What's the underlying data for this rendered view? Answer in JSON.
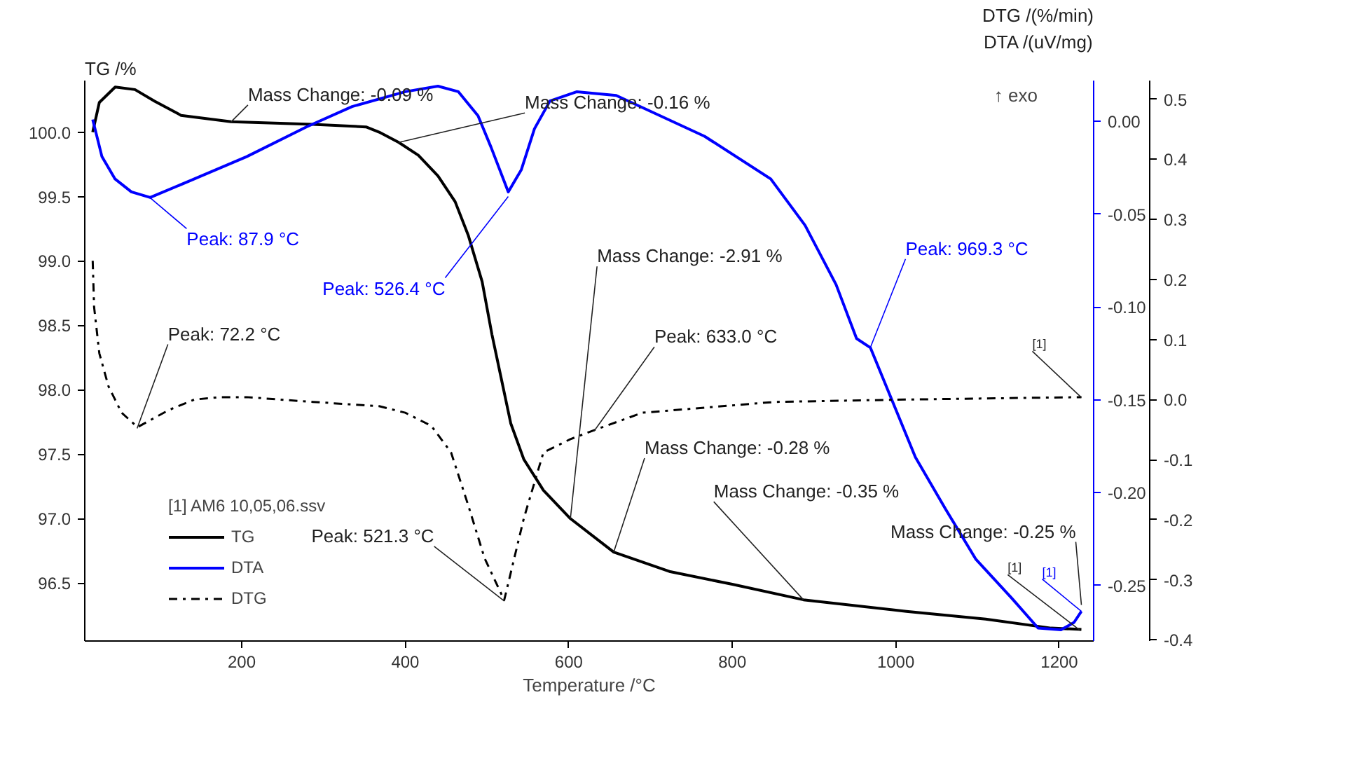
{
  "chart_data": {
    "type": "line",
    "xlabel": "Temperature /°C",
    "ylabel": "TG /%",
    "y2label": "DTA /(uV/mg)",
    "y3label": "DTG /(%/min)",
    "legend_title": "[1] AM6 10,05,06.ssv",
    "legend": "bottom left",
    "grid": false,
    "xlim": [
      8,
      1242
    ],
    "xticks": [
      200,
      400,
      600,
      800,
      1000,
      1200
    ],
    "ylim": [
      96.05,
      100.4
    ],
    "yticks": [
      {
        "value": 96.5,
        "label": "96.5"
      },
      {
        "value": 97,
        "label": "97.0"
      },
      {
        "value": 97.5,
        "label": "97.5"
      },
      {
        "value": 98,
        "label": "98.0"
      },
      {
        "value": 98.5,
        "label": "98.5"
      },
      {
        "value": 99,
        "label": "99.0"
      },
      {
        "value": 99.5,
        "label": "99.5"
      },
      {
        "value": 100,
        "label": "100.0"
      }
    ],
    "y2lim": [
      -0.28,
      0.022
    ],
    "y2ticks": [
      {
        "value": -0.25,
        "label": "-0.25"
      },
      {
        "value": -0.2,
        "label": "-0.20"
      },
      {
        "value": -0.15,
        "label": "-0.15"
      },
      {
        "value": -0.1,
        "label": "-0.10"
      },
      {
        "value": -0.05,
        "label": "-0.05"
      },
      {
        "value": 0,
        "label": "0.00"
      }
    ],
    "y3lim": [
      -0.402,
      0.531
    ],
    "y3ticks": [
      -0.4,
      -0.3,
      -0.2,
      -0.1,
      {
        "value": 0,
        "label": "0.0"
      },
      0.1,
      0.2,
      0.3,
      0.4,
      0.5
    ],
    "series": [
      {
        "name": "TG",
        "color": "#000000",
        "line_style": "solid",
        "x": [
          17.7,
          25.8,
          45.2,
          69.4,
          93.5,
          125.8,
          187,
          287,
          352,
          368,
          392,
          416,
          440,
          461,
          477,
          494,
          506,
          516,
          529,
          545,
          569,
          602,
          655,
          723,
          800,
          887,
          1013,
          1110,
          1190,
          1227
        ],
        "values": [
          100.0,
          100.23,
          100.35,
          100.33,
          100.24,
          100.13,
          100.08,
          100.06,
          100.04,
          100.0,
          99.92,
          99.82,
          99.66,
          99.46,
          99.2,
          98.84,
          98.43,
          98.13,
          97.74,
          97.46,
          97.22,
          97.0,
          96.74,
          96.59,
          96.49,
          96.37,
          96.28,
          96.22,
          96.15,
          96.14
        ]
      },
      {
        "name": "DTA",
        "color": "#0000ff",
        "axis": "y2",
        "line_style": "solid",
        "x": [
          17.7,
          29,
          45,
          65,
          88,
          142,
          206,
          279,
          335,
          400,
          440,
          465,
          489,
          505,
          526,
          542,
          558,
          577,
          610,
          658,
          766,
          847,
          889,
          927,
          952,
          969,
          997,
          1024,
          1061,
          1098,
          1142,
          1174,
          1202,
          1218,
          1227
        ],
        "values": [
          0.001,
          -0.019,
          -0.031,
          -0.038,
          -0.041,
          -0.031,
          -0.019,
          -0.003,
          0.008,
          0.016,
          0.019,
          0.016,
          0.003,
          -0.014,
          -0.038,
          -0.026,
          -0.004,
          0.011,
          0.016,
          0.014,
          -0.008,
          -0.031,
          -0.056,
          -0.088,
          -0.117,
          -0.122,
          -0.152,
          -0.181,
          -0.209,
          -0.236,
          -0.257,
          -0.273,
          -0.274,
          -0.27,
          -0.264
        ]
      },
      {
        "name": "DTG",
        "color": "#000000",
        "axis": "y3",
        "line_style": "dashdot",
        "x": [
          17.7,
          19.4,
          25.8,
          37,
          53,
          72.6,
          110,
          142,
          174,
          206,
          287,
          368,
          400,
          432,
          456,
          477,
          497,
          521,
          545,
          569,
          602,
          631,
          690,
          852,
          1013,
          1227
        ],
        "values": [
          0.231,
          0.154,
          0.077,
          0.022,
          -0.022,
          -0.046,
          -0.018,
          0.0,
          0.004,
          0.004,
          -0.004,
          -0.011,
          -0.022,
          -0.044,
          -0.088,
          -0.176,
          -0.264,
          -0.334,
          -0.198,
          -0.088,
          -0.066,
          -0.051,
          -0.022,
          -0.004,
          0.0,
          0.004
        ]
      }
    ],
    "annotations": [
      {
        "text": "Mass Change: -0.09 %",
        "x": 187,
        "y": 100.08
      },
      {
        "text": "Mass Change: -0.16 %",
        "x": 392,
        "y": 99.92
      },
      {
        "text": "Peak: 87.9 °C",
        "x": 88,
        "y": 99.49
      },
      {
        "text": "Peak: 526.4 °C",
        "x": 526,
        "y": 99.5
      },
      {
        "text": "Mass Change: -2.91 %",
        "x": 602,
        "y": 97.0
      },
      {
        "text": "Peak: 969.3 °C",
        "x": 969,
        "y": 98.33
      },
      {
        "text": "Peak: 72.2 °C",
        "x": 72,
        "y": 97.7
      },
      {
        "text": "Peak: 633.0 °C",
        "x": 631,
        "y": 97.68
      },
      {
        "text": "Peak: 521.3 °C",
        "x": 521,
        "y": 96.36
      },
      {
        "text": "Mass Change: -0.28 %",
        "x": 655,
        "y": 96.74
      },
      {
        "text": "Mass Change: -0.35 %",
        "x": 887,
        "y": 96.37
      },
      {
        "text": "Mass Change: -0.25 %",
        "x": 1227,
        "y": 96.33
      },
      {
        "text": "[1]",
        "x": 1227,
        "y": 97.94
      },
      {
        "text": "[1]",
        "x": 1226,
        "y": 96.13
      },
      {
        "text": "[1]",
        "x": 1227,
        "y": 96.28
      },
      "↑ exo"
    ]
  }
}
